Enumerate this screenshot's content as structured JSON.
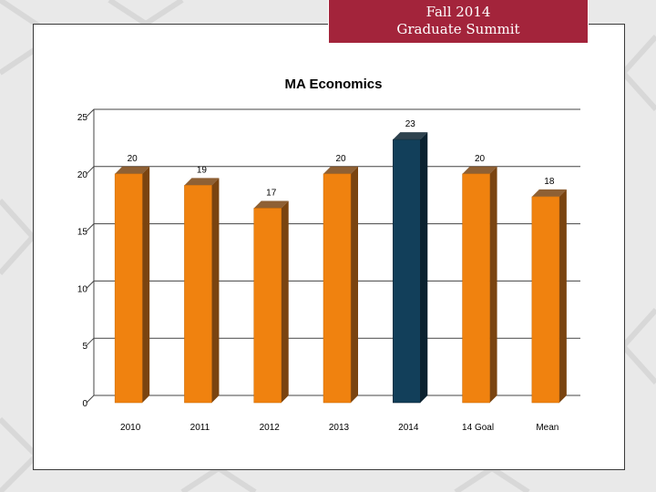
{
  "banner": {
    "line1": "Fall 2014",
    "line2": "Graduate Summit"
  },
  "colors": {
    "banner": "#a3243b",
    "bar_default": "#f0820f",
    "bar_default_side": "#7a4410",
    "bar_highlight": "#123f5a",
    "bar_highlight_side": "#0b2230",
    "grid": "#444444"
  },
  "chart_data": {
    "type": "bar",
    "title": "MA Economics",
    "categories": [
      "2010",
      "2011",
      "2012",
      "2013",
      "2014",
      "14 Goal",
      "Mean"
    ],
    "values": [
      20,
      19,
      17,
      20,
      23,
      20,
      18
    ],
    "highlight_index": 4,
    "ylim": [
      0,
      25
    ],
    "yticks": [
      0,
      5,
      10,
      15,
      20,
      25
    ],
    "xlabel": "",
    "ylabel": "",
    "grid": true,
    "legend": "none"
  }
}
